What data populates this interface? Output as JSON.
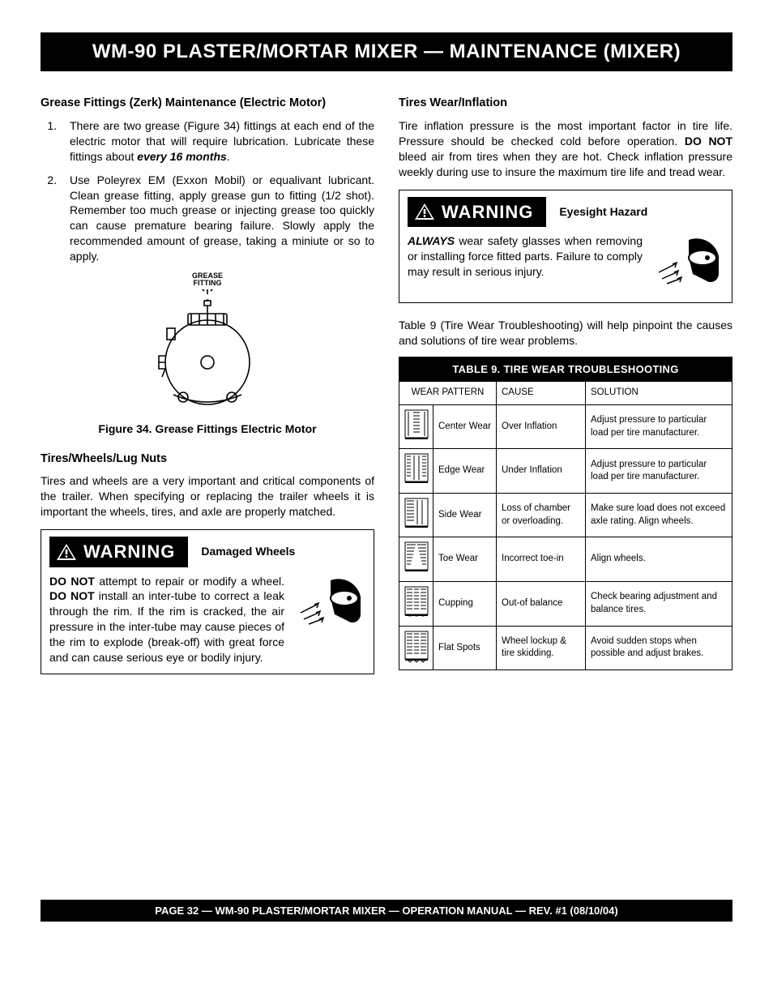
{
  "title_bar": "WM-90 PLASTER/MORTAR MIXER — MAINTENANCE (MIXER)",
  "left": {
    "h_grease": "Grease Fittings (Zerk) Maintenance (Electric Motor)",
    "li1_a": "There are two grease (Figure 34) fittings at each end of the electric motor that will require lubrication. Lubricate these fittings about ",
    "li1_b": "every 16 months",
    "li1_c": ".",
    "li2": "Use Poleyrex EM (Exxon Mobil) or equalivant lubricant. Clean grease fitting, apply grease gun to fitting (1/2 shot). Remember too much grease or injecting grease too quickly can cause premature bearing failure. Slowly apply the recommended amount of grease, taking a miniute or so to apply.",
    "grease_label_1": "GREASE",
    "grease_label_2": "FITTING",
    "fig34": "Figure 34.  Grease Fittings Electric Motor",
    "h_tires": "Tires/Wheels/Lug Nuts",
    "p_tires": "Tires and wheels are a very important and critical components of the trailer.  When specifying or replacing the trailer wheels it is important the wheels, tires, and axle are properly matched.",
    "warn1_label": "WARNING",
    "warn1_title": "Damaged Wheels",
    "warn1_body_a": "DO NOT",
    "warn1_body_b": " attempt to repair or modify a wheel. ",
    "warn1_body_c": "DO NOT",
    "warn1_body_d": " install an inter-tube to correct a leak through the rim. If the rim is cracked, the air pressure in the inter-tube may cause pieces of the rim to explode (break-off) with great force and can cause serious eye or bodily injury."
  },
  "right": {
    "h_inflation": "Tires Wear/Inflation",
    "p_infl_a": "Tire inflation pressure is the most important factor in tire life. Pressure should be checked cold before operation.  ",
    "p_infl_b": "DO NOT",
    "p_infl_c": " bleed air from tires when they are hot.  Check inflation pressure weekly during use to insure the maximum tire life and tread wear.",
    "warn2_label": "WARNING",
    "warn2_title": "Eyesight Hazard",
    "warn2_body_a": "ALWAYS",
    "warn2_body_b": " wear safety glasses when removing or installing force fitted parts. Failure to comply may result in serious injury.",
    "p_table_intro": "Table 9 (Tire Wear Troubleshooting) will help pinpoint the causes and solutions of tire wear problems.",
    "table": {
      "title": "TABLE 9. TIRE WEAR TROUBLESHOOTING",
      "head_wear": "WEAR PATTERN",
      "head_cause": "CAUSE",
      "head_solution": "SOLUTION",
      "rows": [
        {
          "name": "Center Wear",
          "cause": "Over Inflation",
          "solution": "Adjust pressure to particular load per tire manufacturer."
        },
        {
          "name": "Edge Wear",
          "cause": "Under Inflation",
          "solution": "Adjust pressure to particular load per tire manufacturer."
        },
        {
          "name": "Side Wear",
          "cause": "Loss of chamber or overloading.",
          "solution": "Make sure load does not exceed axle rating. Align wheels."
        },
        {
          "name": "Toe Wear",
          "cause": "Incorrect toe-in",
          "solution": "Align wheels."
        },
        {
          "name": "Cupping",
          "cause": "Out-of balance",
          "solution": "Check bearing adjustment and balance tires."
        },
        {
          "name": "Flat Spots",
          "cause": "Wheel lockup & tire skidding.",
          "solution": "Avoid sudden stops when possible and adjust brakes."
        }
      ]
    }
  },
  "footer": "PAGE 32 — WM-90 PLASTER/MORTAR MIXER — OPERATION MANUAL — REV. #1 (08/10/04)"
}
